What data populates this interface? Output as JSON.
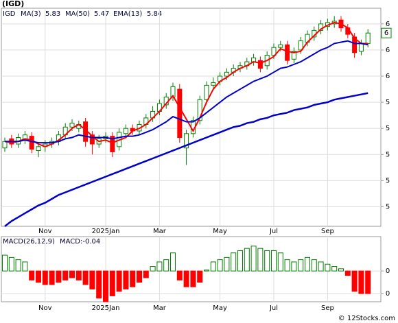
{
  "chart_data": [
    {
      "type": "candlestick",
      "title": "(IGD)",
      "name": "IGD",
      "categories": [
        null,
        null,
        null,
        null,
        null,
        null,
        "Nov",
        null,
        null,
        null,
        null,
        null,
        null,
        null,
        null,
        "2025Jan",
        null,
        null,
        null,
        null,
        null,
        null,
        null,
        "Mar",
        null,
        null,
        null,
        null,
        null,
        null,
        null,
        null,
        "May",
        null,
        null,
        null,
        null,
        null,
        null,
        null,
        "Jul",
        null,
        null,
        null,
        null,
        null,
        null,
        null,
        "Sep",
        null,
        null,
        null,
        null,
        null,
        null
      ],
      "open": [
        5.05,
        5.12,
        5.08,
        5.11,
        5.14,
        5.03,
        5.06,
        5.08,
        5.1,
        5.15,
        5.21,
        5.2,
        5.25,
        5.15,
        5.08,
        5.12,
        5.14,
        5.06,
        5.16,
        5.2,
        5.18,
        5.23,
        5.28,
        5.33,
        5.38,
        5.44,
        5.5,
        5.05,
        5.16,
        5.26,
        5.42,
        5.53,
        5.56,
        5.6,
        5.63,
        5.66,
        5.68,
        5.71,
        5.72,
        5.68,
        5.76,
        5.82,
        5.84,
        5.73,
        5.8,
        5.86,
        5.9,
        5.95,
        5.98,
        6.0,
        6.03,
        5.97,
        5.9,
        5.79,
        5.85
      ],
      "high": [
        5.13,
        5.15,
        5.16,
        5.18,
        5.17,
        5.09,
        5.11,
        5.13,
        5.18,
        5.24,
        5.27,
        5.26,
        5.28,
        5.18,
        5.15,
        5.17,
        5.17,
        5.2,
        5.23,
        5.23,
        5.26,
        5.31,
        5.37,
        5.42,
        5.47,
        5.55,
        5.54,
        5.19,
        5.29,
        5.45,
        5.56,
        5.59,
        5.63,
        5.66,
        5.69,
        5.71,
        5.74,
        5.77,
        5.75,
        5.79,
        5.85,
        5.87,
        5.87,
        5.82,
        5.9,
        5.95,
        5.98,
        6.03,
        6.04,
        6.06,
        6.06,
        6.0,
        5.93,
        5.88,
        5.96
      ],
      "low": [
        5.02,
        5.05,
        5.05,
        5.08,
        5.01,
        4.98,
        5.02,
        5.05,
        5.07,
        5.12,
        5.18,
        5.17,
        5.06,
        5.0,
        5.05,
        5.09,
        4.98,
        5.03,
        5.13,
        5.15,
        5.15,
        5.2,
        5.25,
        5.3,
        5.35,
        5.41,
        5.09,
        4.92,
        5.13,
        5.23,
        5.39,
        5.5,
        5.53,
        5.57,
        5.6,
        5.63,
        5.65,
        5.68,
        5.63,
        5.65,
        5.73,
        5.79,
        5.69,
        5.7,
        5.77,
        5.83,
        5.87,
        5.92,
        5.95,
        5.97,
        5.94,
        5.89,
        5.74,
        5.76,
        5.82
      ],
      "close": [
        5.1,
        5.08,
        5.13,
        5.15,
        5.04,
        5.06,
        5.08,
        5.1,
        5.15,
        5.21,
        5.24,
        5.23,
        5.1,
        5.08,
        5.12,
        5.14,
        5.02,
        5.17,
        5.2,
        5.18,
        5.23,
        5.28,
        5.33,
        5.39,
        5.44,
        5.52,
        5.13,
        5.16,
        5.26,
        5.42,
        5.53,
        5.55,
        5.6,
        5.63,
        5.66,
        5.68,
        5.71,
        5.74,
        5.66,
        5.76,
        5.82,
        5.84,
        5.72,
        5.79,
        5.87,
        5.92,
        5.95,
        6.0,
        6.01,
        6.02,
        5.97,
        5.92,
        5.78,
        5.85,
        5.93
      ],
      "up_color": "#008000",
      "down_color": "#ff0000",
      "lines": [
        {
          "name": "MA(3)",
          "last": 5.83,
          "color": "#ff0000",
          "width": 2,
          "values": [
            5.1,
            5.09,
            5.1,
            5.12,
            5.11,
            5.08,
            5.06,
            5.08,
            5.11,
            5.15,
            5.2,
            5.23,
            5.19,
            5.14,
            5.1,
            5.11,
            5.09,
            5.11,
            5.13,
            5.18,
            5.2,
            5.23,
            5.28,
            5.33,
            5.39,
            5.45,
            5.36,
            5.27,
            5.18,
            5.28,
            5.4,
            5.5,
            5.56,
            5.59,
            5.63,
            5.66,
            5.68,
            5.71,
            5.7,
            5.72,
            5.75,
            5.81,
            5.79,
            5.78,
            5.79,
            5.86,
            5.91,
            5.96,
            5.99,
            6.01,
            6.0,
            5.97,
            5.89,
            5.85,
            5.85
          ]
        },
        {
          "name": "MA(50)",
          "last": 5.47,
          "color": "#0000cc",
          "width": 2.5,
          "values": [
            4.45,
            4.49,
            4.52,
            4.55,
            4.58,
            4.61,
            4.63,
            4.66,
            4.69,
            4.71,
            4.73,
            4.75,
            4.77,
            4.79,
            4.81,
            4.83,
            4.85,
            4.87,
            4.89,
            4.91,
            4.93,
            4.95,
            4.97,
            4.99,
            5.01,
            5.03,
            5.05,
            5.07,
            5.09,
            5.11,
            5.13,
            5.15,
            5.17,
            5.19,
            5.21,
            5.22,
            5.24,
            5.25,
            5.27,
            5.28,
            5.3,
            5.31,
            5.32,
            5.34,
            5.35,
            5.36,
            5.38,
            5.39,
            5.4,
            5.42,
            5.43,
            5.44,
            5.45,
            5.46,
            5.47
          ]
        },
        {
          "name": "EMA(13)",
          "last": 5.84,
          "color": "#0000cc",
          "width": 2,
          "values": [
            5.1,
            5.1,
            5.1,
            5.11,
            5.1,
            5.09,
            5.09,
            5.09,
            5.1,
            5.12,
            5.13,
            5.15,
            5.14,
            5.13,
            5.13,
            5.13,
            5.12,
            5.13,
            5.14,
            5.14,
            5.15,
            5.17,
            5.19,
            5.22,
            5.25,
            5.29,
            5.27,
            5.25,
            5.25,
            5.28,
            5.32,
            5.36,
            5.4,
            5.44,
            5.47,
            5.5,
            5.53,
            5.56,
            5.58,
            5.6,
            5.63,
            5.66,
            5.67,
            5.69,
            5.71,
            5.74,
            5.77,
            5.8,
            5.82,
            5.85,
            5.86,
            5.87,
            5.85,
            5.85,
            5.84
          ]
        }
      ],
      "ylim": [
        4.45,
        6.12
      ],
      "yticks": [
        {
          "value": 6.0,
          "label": "6"
        },
        {
          "value": 5.8,
          "label": "6"
        },
        {
          "value": 5.6,
          "label": "6"
        },
        {
          "value": 5.4,
          "label": "5"
        },
        {
          "value": 5.2,
          "label": "5"
        },
        {
          "value": 5.0,
          "label": "5"
        },
        {
          "value": 4.8,
          "label": "5"
        },
        {
          "value": 4.6,
          "label": "5"
        }
      ],
      "price_tag": {
        "value": 5.93,
        "label": "6"
      },
      "grid": true
    },
    {
      "type": "macd",
      "title": "MACD(26,12,9)",
      "legend": "MACD:-0.04",
      "categories": [
        null,
        null,
        null,
        null,
        null,
        null,
        "Nov",
        null,
        null,
        null,
        null,
        null,
        null,
        null,
        null,
        "2025Jan",
        null,
        null,
        null,
        null,
        null,
        null,
        null,
        "Mar",
        null,
        null,
        null,
        null,
        null,
        null,
        null,
        null,
        "May",
        null,
        null,
        null,
        null,
        null,
        null,
        null,
        "Jul",
        null,
        null,
        null,
        null,
        null,
        null,
        null,
        "Sep",
        null,
        null,
        null,
        null,
        null,
        null
      ],
      "values": [
        0.035,
        0.03,
        0.025,
        0.02,
        -0.02,
        -0.025,
        -0.03,
        -0.03,
        -0.025,
        -0.02,
        -0.015,
        -0.02,
        -0.03,
        -0.04,
        -0.06,
        -0.068,
        -0.055,
        -0.045,
        -0.04,
        -0.035,
        -0.025,
        -0.015,
        0.01,
        0.02,
        0.025,
        0.04,
        -0.02,
        -0.035,
        -0.035,
        -0.025,
        0.002,
        0.02,
        0.025,
        0.03,
        0.04,
        0.045,
        0.05,
        0.055,
        0.05,
        0.045,
        0.045,
        0.04,
        0.025,
        0.02,
        0.025,
        0.03,
        0.025,
        0.02,
        0.015,
        0.01,
        0.005,
        -0.01,
        -0.045,
        -0.05,
        -0.05
      ],
      "up_color": "#008000",
      "down_color": "#ff0000",
      "ylim": [
        -0.068,
        0.076
      ],
      "yticks": [
        0,
        {
          "value": -0.05,
          "label": "0"
        }
      ],
      "grid": true
    }
  ],
  "footer": "© 12Stocks.com"
}
